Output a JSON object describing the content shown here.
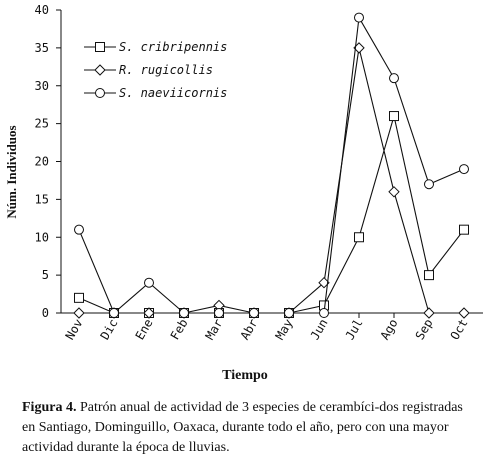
{
  "chart_data": {
    "type": "line",
    "categories": [
      "Nov",
      "Dic",
      "Ene",
      "Feb",
      "Mar",
      "Abr",
      "May",
      "Jun",
      "Jul",
      "Ago",
      "Sep",
      "Oct"
    ],
    "series": [
      {
        "name": "S. cribripennis",
        "marker": "square",
        "values": [
          2,
          0,
          0,
          0,
          0,
          0,
          0,
          1,
          10,
          26,
          5,
          11
        ]
      },
      {
        "name": "R. rugicollis",
        "marker": "diamond",
        "values": [
          0,
          0,
          0,
          0,
          1,
          0,
          0,
          4,
          35,
          16,
          0,
          0
        ]
      },
      {
        "name": "S. naeviicornis",
        "marker": "circle",
        "values": [
          11,
          0,
          4,
          0,
          0,
          0,
          0,
          0,
          39,
          31,
          17,
          19
        ]
      }
    ],
    "xlabel": "Tiempo",
    "ylabel": "Núm. Individuos",
    "ylim": [
      0,
      40
    ],
    "yticks": [
      "0",
      "5",
      "10",
      "15",
      "20",
      "25",
      "30",
      "35",
      "40"
    ],
    "legend_position": "top-left",
    "grid": false,
    "line_color": "#111111",
    "marker_fill": "#ffffff"
  },
  "caption": {
    "label": "Figura 4.",
    "text": "Patrón anual de actividad de 3 especies de cerambíci-dos registradas en Santiago, Dominguillo, Oaxaca, durante todo el año, pero con una mayor actividad durante la época de lluvias."
  }
}
